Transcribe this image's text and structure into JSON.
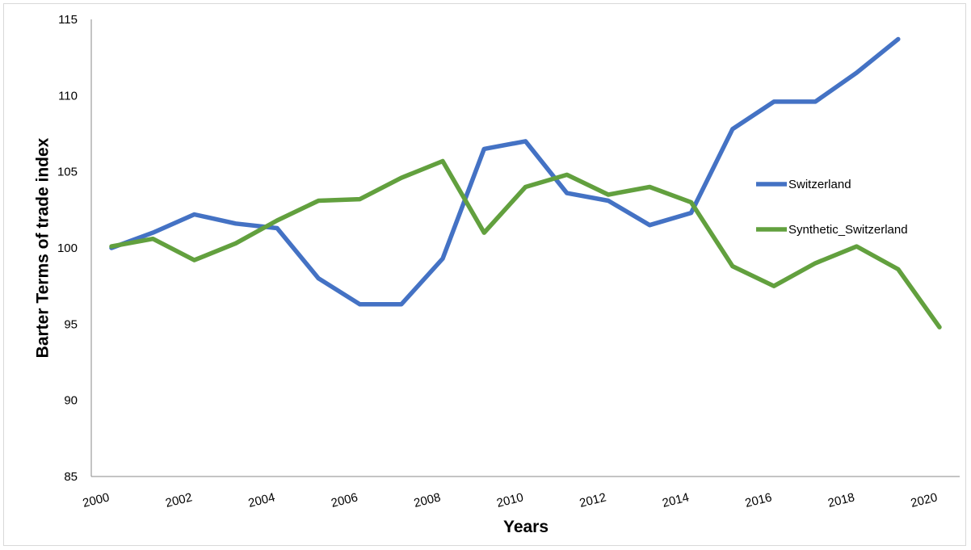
{
  "chart_data": {
    "type": "line",
    "xlabel": "Years",
    "ylabel": "Barter Terms of trade index",
    "xlim": [
      2000,
      2020
    ],
    "ylim": [
      85,
      115
    ],
    "y_ticks": [
      85,
      90,
      95,
      100,
      105,
      110,
      115
    ],
    "x_tick_labels": [
      "2000",
      "2002",
      "2004",
      "2006",
      "2008",
      "2010",
      "2012",
      "2014",
      "2016",
      "2018",
      "2020"
    ],
    "x_ticks": [
      2000,
      2002,
      2004,
      2006,
      2008,
      2010,
      2012,
      2014,
      2016,
      2018,
      2020
    ],
    "grid": false,
    "legend": "right",
    "series": [
      {
        "name": "Switzerland",
        "color": "#4472C4",
        "x": [
          2000,
          2001,
          2002,
          2003,
          2004,
          2005,
          2006,
          2007,
          2008,
          2009,
          2010,
          2011,
          2012,
          2013,
          2014,
          2015,
          2016,
          2017,
          2018,
          2019
        ],
        "values": [
          100.0,
          101.0,
          102.2,
          101.6,
          101.3,
          98.0,
          96.3,
          96.3,
          99.3,
          106.5,
          107.0,
          103.6,
          103.1,
          101.5,
          102.3,
          107.8,
          109.6,
          109.6,
          111.5,
          113.7
        ]
      },
      {
        "name": "Synthetic_Switzerland",
        "color": "#62A03E",
        "x": [
          2000,
          2001,
          2002,
          2003,
          2004,
          2005,
          2006,
          2007,
          2008,
          2009,
          2010,
          2011,
          2012,
          2013,
          2014,
          2015,
          2016,
          2017,
          2018,
          2019,
          2020
        ],
        "values": [
          100.1,
          100.6,
          99.2,
          100.3,
          101.8,
          103.1,
          103.2,
          104.6,
          105.7,
          101.0,
          104.0,
          104.8,
          103.5,
          104.0,
          103.0,
          98.8,
          97.5,
          99.0,
          100.1,
          98.6,
          94.8
        ]
      }
    ]
  }
}
